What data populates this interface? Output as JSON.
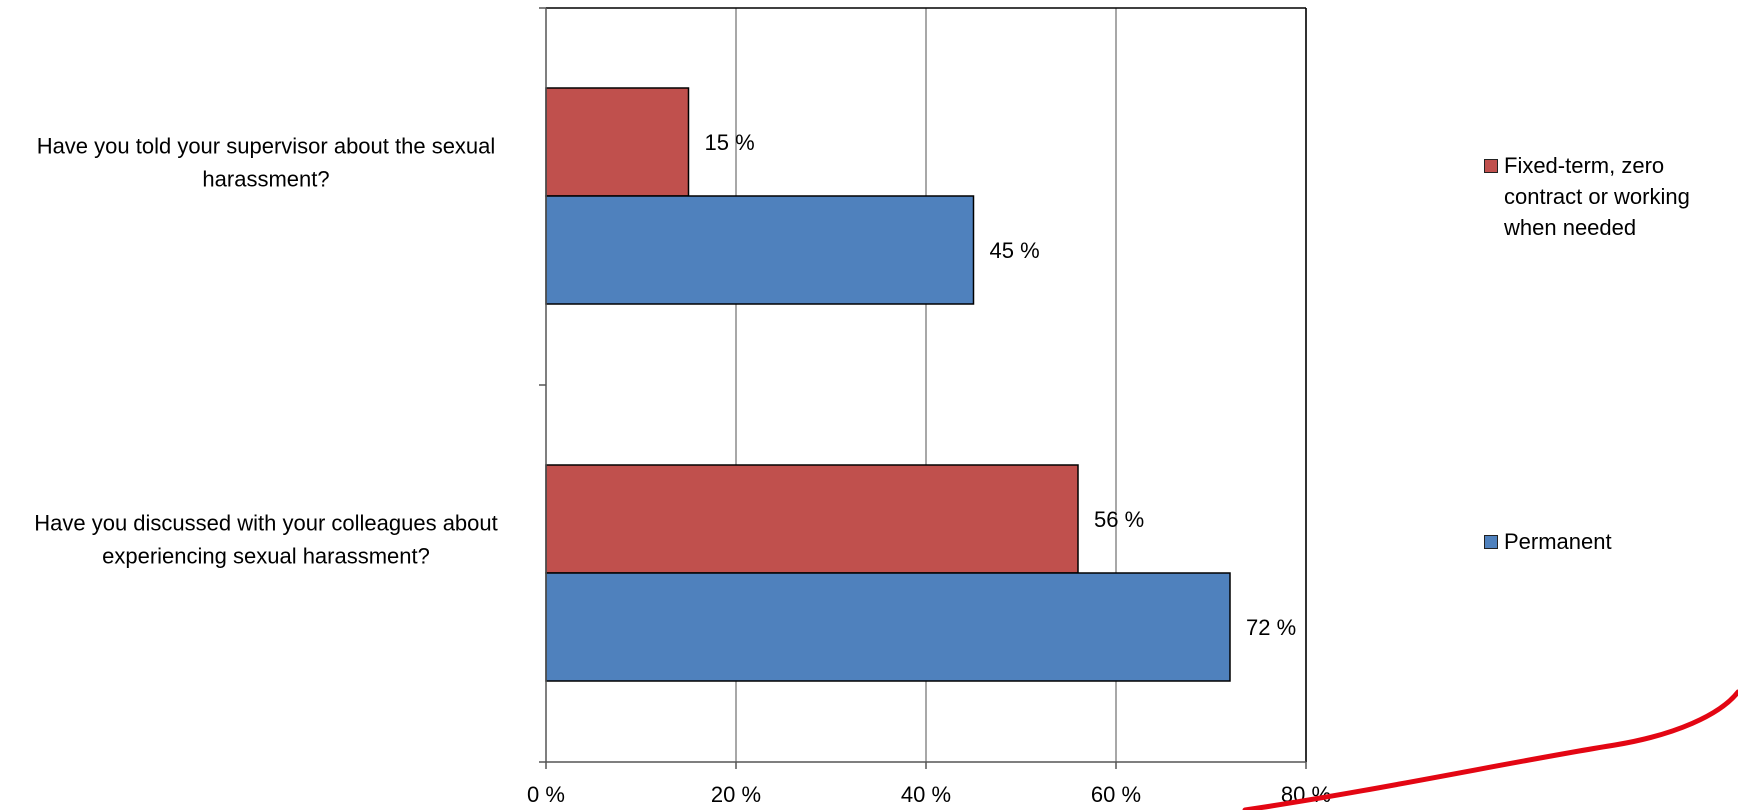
{
  "chart_data": {
    "type": "bar",
    "orientation": "horizontal",
    "categories": [
      "Have you told your supervisor about the sexual harassment?",
      "Have you discussed with your colleagues about experiencing sexual harassment?"
    ],
    "category_lines": [
      [
        "Have you told your supervisor about the sexual",
        "harassment?"
      ],
      [
        "Have you discussed with your colleagues about",
        "experiencing sexual harassment?"
      ]
    ],
    "series": [
      {
        "name": "Fixed-term, zero contract or working when needed",
        "color": "#c0504d",
        "values": [
          15,
          56
        ],
        "labels": [
          "15 %",
          "56 %"
        ]
      },
      {
        "name": "Permanent",
        "color": "#4f81bd",
        "values": [
          45,
          72
        ],
        "labels": [
          "45 %",
          "72 %"
        ]
      }
    ],
    "x_ticks": [
      0,
      20,
      40,
      60,
      80
    ],
    "x_tick_labels": [
      "0 %",
      "20 %",
      "40 %",
      "60 %",
      "80 %"
    ],
    "xlim": [
      0,
      80
    ],
    "grid": true,
    "legend_position": "right",
    "legend": {
      "items": [
        {
          "lines": [
            "Fixed-term, zero",
            "contract or working",
            "when needed"
          ],
          "color": "#c0504d"
        },
        {
          "lines": [
            "Permanent"
          ],
          "color": "#4f81bd"
        }
      ]
    },
    "title": "",
    "xlabel": "",
    "ylabel": ""
  }
}
